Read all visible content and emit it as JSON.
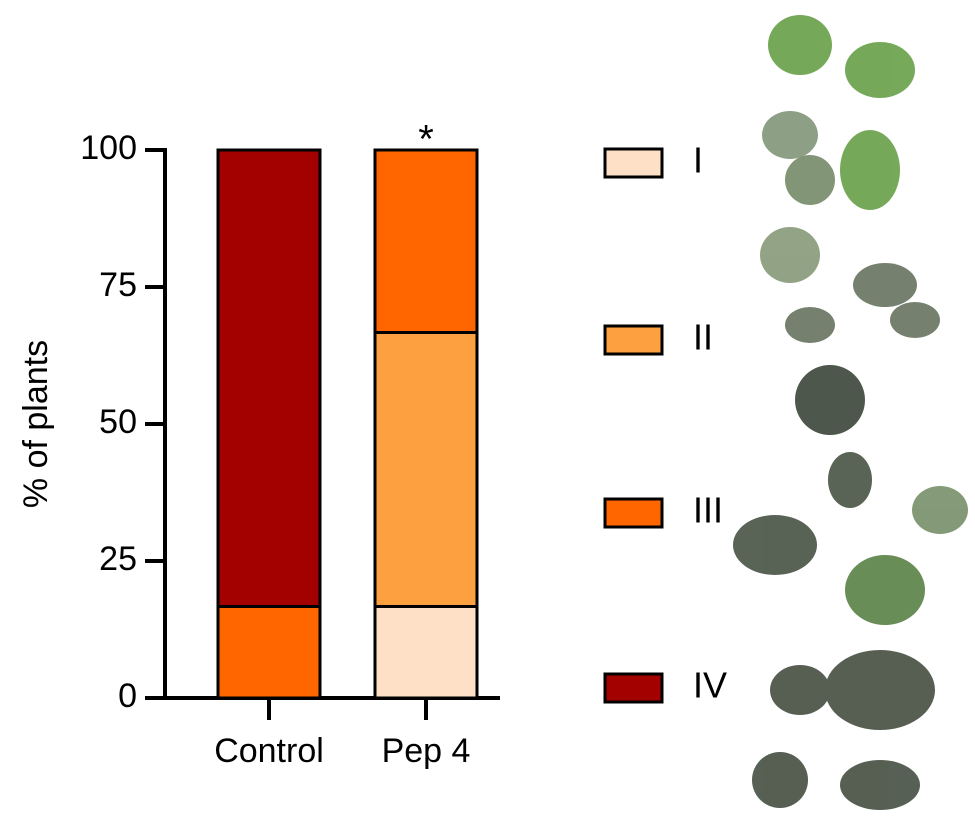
{
  "chart_data": {
    "type": "stacked_bar",
    "ylabel": "% of plants",
    "categories": [
      "Control",
      "Pep 4"
    ],
    "series": [
      {
        "name": "I",
        "color": "#fde0c5",
        "values": [
          0,
          16.7
        ]
      },
      {
        "name": "II",
        "color": "#fca040",
        "values": [
          0,
          50
        ]
      },
      {
        "name": "III",
        "color": "#ff6600",
        "values": [
          16.7,
          33.3
        ]
      },
      {
        "name": "IV",
        "color": "#a30000",
        "values": [
          83.3,
          0
        ]
      }
    ],
    "annotations": [
      "",
      "*"
    ],
    "ylim": [
      0,
      100
    ],
    "yticks": [
      0,
      25,
      50,
      75,
      100
    ]
  }
}
